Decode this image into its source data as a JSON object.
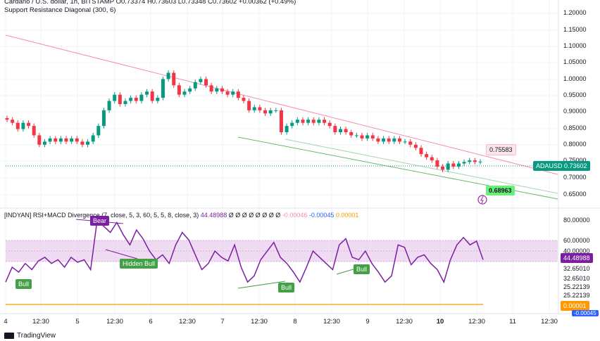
{
  "header": {
    "line1": "Cardano / U.S. dollar, 1h, BITSTAMP  O0.73374  H0.73603  L0.73348  C0.73602  +0.00362 (+0.49%)",
    "line2": "Support Resistance Diagonal (300, 6)"
  },
  "price_axis": [
    "1.20000",
    "1.15000",
    "1.10000",
    "1.05000",
    "1.00000",
    "0.95000",
    "0.90000",
    "0.85000",
    "0.80000",
    "0.75000",
    "0.70000",
    "0.65000"
  ],
  "rsi_axis": [
    "80.00000",
    "60.00000",
    "40.00000",
    "32.65010",
    "32.65010",
    "25.22139",
    "25.22139"
  ],
  "last_price_tag": {
    "symbol": "ADAUSD",
    "value": "0.73602"
  },
  "resistance_tag": "0.75583",
  "support_tag": "0.68963",
  "rsi_value_tag": "44.48988",
  "macd_tags": [
    "0.00001",
    "-0.00045"
  ],
  "indicator": {
    "name": "[INDYAN] RSI+MACD Divergence (7, close, 5, 3, 60, 5, 5, 8, close, 3)",
    "rsi_value": "44.48988",
    "zeros": "Ø Ø Ø Ø Ø Ø Ø Ø",
    "v1": "-0.00046",
    "v2": "-0.00045",
    "v3": "0.00001"
  },
  "divergence_labels": [
    "Bear",
    "Hidden Bull",
    "Bull",
    "Bull",
    "Bull"
  ],
  "x_axis": [
    "4",
    "12:30",
    "5",
    "12:30",
    "6",
    "12:30",
    "7",
    "12:30",
    "8",
    "12:30",
    "9",
    "12:30",
    "10",
    "12:30",
    "11",
    "12:30"
  ],
  "footer": "TradingView",
  "colors": {
    "up": "#089981",
    "down": "#f23645",
    "rsi": "#7b1fa2",
    "resistance": "#f48fb1",
    "support": "#66bb6a",
    "band": "#e1bee7",
    "last": "#089981",
    "macd": "#ff9800"
  },
  "chart_data": {
    "type": "candlestick",
    "ylim": [
      0.63,
      1.21
    ],
    "closes": [
      0.87,
      0.86,
      0.84,
      0.86,
      0.85,
      0.82,
      0.79,
      0.8,
      0.81,
      0.8,
      0.81,
      0.8,
      0.81,
      0.8,
      0.79,
      0.8,
      0.82,
      0.85,
      0.9,
      0.93,
      0.95,
      0.92,
      0.93,
      0.94,
      0.93,
      0.95,
      0.96,
      0.93,
      0.94,
      1.0,
      1.02,
      0.98,
      0.95,
      0.96,
      0.97,
      0.99,
      1.0,
      0.98,
      0.96,
      0.97,
      0.96,
      0.95,
      0.96,
      0.94,
      0.93,
      0.9,
      0.91,
      0.9,
      0.89,
      0.9,
      0.9,
      0.83,
      0.85,
      0.86,
      0.87,
      0.86,
      0.87,
      0.86,
      0.87,
      0.86,
      0.85,
      0.83,
      0.84,
      0.83,
      0.82,
      0.82,
      0.81,
      0.82,
      0.81,
      0.8,
      0.81,
      0.8,
      0.81,
      0.8,
      0.8,
      0.79,
      0.78,
      0.76,
      0.75,
      0.74,
      0.72,
      0.71,
      0.73,
      0.72,
      0.73,
      0.735,
      0.74,
      0.735,
      0.736
    ],
    "rsi": [
      30,
      42,
      38,
      45,
      40,
      47,
      50,
      45,
      48,
      42,
      50,
      46,
      48,
      40,
      80,
      75,
      70,
      78,
      68,
      60,
      72,
      65,
      55,
      48,
      52,
      45,
      60,
      70,
      64,
      52,
      40,
      45,
      55,
      50,
      47,
      60,
      42,
      30,
      35,
      48,
      55,
      62,
      50,
      45,
      38,
      30,
      42,
      55,
      50,
      45,
      40,
      60,
      65,
      50,
      48,
      55,
      45,
      38,
      30,
      35,
      60,
      58,
      44,
      50,
      52,
      45,
      40,
      30,
      48,
      60,
      66,
      60,
      63,
      48
    ],
    "macd": [
      1e-05
    ]
  }
}
